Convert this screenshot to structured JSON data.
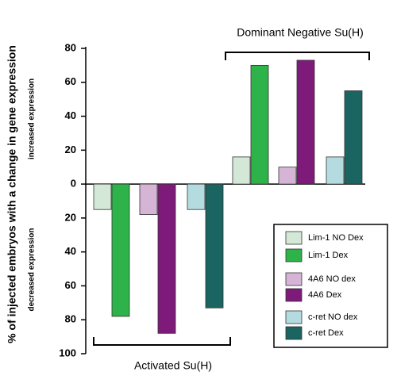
{
  "chart_data": {
    "type": "bar",
    "y_label": "% of injected embryos with a change in gene expression",
    "annotations": [
      "increased expression",
      "decreased expression"
    ],
    "categories": [
      "Activated Su(H)",
      "Dominant Negative Su(H)"
    ],
    "series": [
      {
        "name": "Lim-1 NO Dex",
        "color": "#d3e8d6",
        "values": [
          -15,
          16
        ]
      },
      {
        "name": "Lim-1 Dex",
        "color": "#2db34a",
        "values": [
          -78,
          70
        ]
      },
      {
        "name": "4A6 NO dex",
        "color": "#d5b4d6",
        "values": [
          -18,
          10
        ]
      },
      {
        "name": "4A6 Dex",
        "color": "#7e1a7a",
        "values": [
          -88,
          73
        ]
      },
      {
        "name": "c-ret NO dex",
        "color": "#b4dce0",
        "values": [
          -15,
          16
        ]
      },
      {
        "name": "c-ret Dex",
        "color": "#1a6461",
        "values": [
          -73,
          55
        ]
      }
    ],
    "ylim": [
      -100,
      80
    ],
    "yticks": [
      80,
      60,
      40,
      20,
      0,
      {
        "value": -20,
        "label": "20"
      },
      {
        "value": -40,
        "label": "40"
      },
      {
        "value": -60,
        "label": "60"
      },
      {
        "value": -80,
        "label": "80"
      },
      {
        "value": -100,
        "label": "100"
      }
    ]
  }
}
